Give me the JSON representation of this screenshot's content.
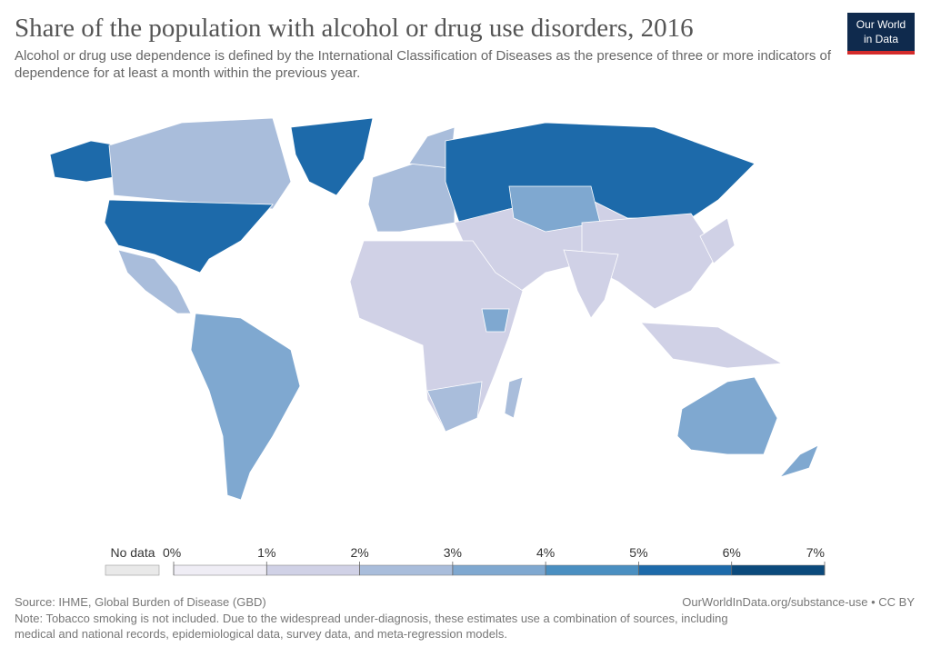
{
  "header": {
    "title": "Share of the population with alcohol or drug use disorders, 2016",
    "subtitle": "Alcohol or drug use dependence is defined by the International Classification of Diseases as the presence of three or more indicators of dependence for at least a month within the previous year.",
    "logo": [
      "Our World",
      "in Data"
    ]
  },
  "legend": {
    "no_data_label": "No data",
    "no_data_color": "#e9e9e9",
    "ticks": [
      {
        "value": 0,
        "label": "0%"
      },
      {
        "value": 1,
        "label": "1%"
      },
      {
        "value": 2,
        "label": "2%"
      },
      {
        "value": 3,
        "label": "3%"
      },
      {
        "value": 4,
        "label": "4%"
      },
      {
        "value": 5,
        "label": "5%"
      },
      {
        "value": 6,
        "label": "6%"
      },
      {
        "value": 7,
        "label": "7%"
      }
    ],
    "colors": [
      "#efedf5",
      "#d0d1e6",
      "#a9bddb",
      "#7fa8d0",
      "#4a8fc1",
      "#1d6aaa",
      "#0b4a7c"
    ]
  },
  "footer": {
    "source": "Source: IHME, Global Burden of Disease (GBD)",
    "url": "OurWorldInData.org/substance-use • CC BY",
    "note": [
      "Note: Tobacco smoking is not included. Due to the widespread under-diagnosis, these estimates use a combination of sources, including",
      "medical and national records, epidemiological data, survey data, and meta-regression models."
    ]
  }
}
